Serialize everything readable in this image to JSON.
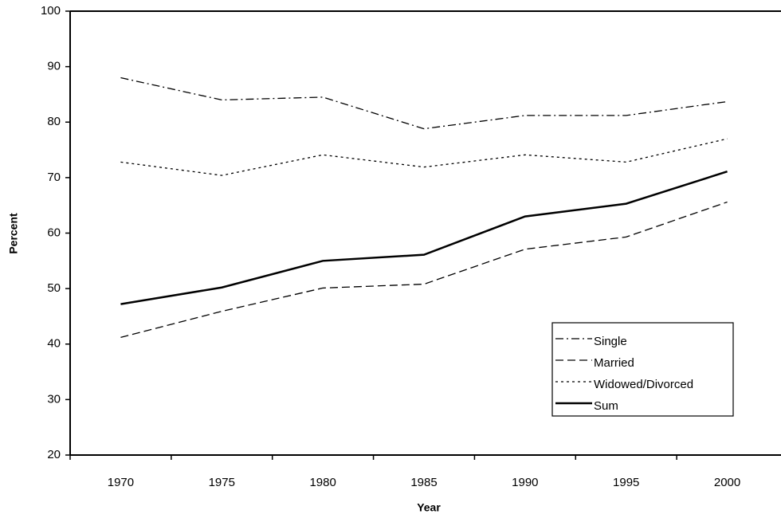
{
  "chart_data": {
    "type": "line",
    "xlabel": "Year",
    "ylabel": "Percent",
    "categories": [
      "1970",
      "1975",
      "1980",
      "1985",
      "1990",
      "1995",
      "2000"
    ],
    "series": [
      {
        "name": "Single",
        "color": "#000000",
        "style": "dashdot",
        "values": [
          88,
          84,
          84.5,
          78.8,
          81.2,
          81.2,
          83.7
        ]
      },
      {
        "name": "Married",
        "color": "#000000",
        "style": "dashed",
        "values": [
          41.2,
          45.9,
          50.1,
          50.8,
          57.1,
          59.3,
          65.6
        ]
      },
      {
        "name": "Widowed/Divorced",
        "color": "#000000",
        "style": "dotted",
        "values": [
          72.8,
          70.4,
          74.1,
          71.9,
          74.1,
          72.8,
          77.0
        ]
      },
      {
        "name": "Sum",
        "color": "#000000",
        "style": "solid",
        "values": [
          47.2,
          50.2,
          55.0,
          56.1,
          63.0,
          65.3,
          71.1
        ]
      }
    ],
    "ylim": [
      20,
      100
    ],
    "yticks": [
      20,
      30,
      40,
      50,
      60,
      70,
      80,
      90,
      100
    ],
    "grid": false,
    "legend": "lower right"
  }
}
